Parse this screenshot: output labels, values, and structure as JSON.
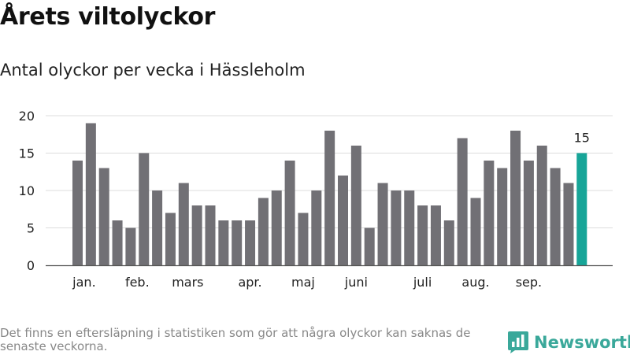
{
  "header": {
    "title": "Årets viltolyckor",
    "subtitle": "Antal olyckor per vecka i Hässleholm"
  },
  "footer": {
    "note": "Det finns en eftersläpning i statistiken som gör att några olyckor kan saknas de senaste veckorna.",
    "brand": "Newsworthy",
    "brand_icon": "bar-chart-speech-bubble-icon"
  },
  "colors": {
    "bar": "#717075",
    "highlight": "#17a598",
    "grid": "#dcdcdc",
    "axis": "#555555",
    "brand": "#3aa89a"
  },
  "chart_data": {
    "type": "bar",
    "title": "Årets viltolyckor",
    "subtitle": "Antal olyckor per vecka i Hässleholm",
    "xlabel": "",
    "ylabel": "",
    "ylim": [
      0,
      20
    ],
    "yticks": [
      0,
      5,
      10,
      15,
      20
    ],
    "grid": true,
    "legend": "none",
    "weeks": [
      1,
      2,
      3,
      4,
      5,
      6,
      7,
      8,
      9,
      10,
      11,
      12,
      13,
      14,
      15,
      16,
      17,
      18,
      19,
      20,
      21,
      22,
      23,
      24,
      25,
      26,
      27,
      28,
      29,
      30,
      31,
      32,
      33,
      34,
      35,
      36,
      37,
      38,
      39
    ],
    "values": [
      14,
      19,
      13,
      6,
      5,
      15,
      10,
      7,
      11,
      8,
      8,
      6,
      6,
      6,
      9,
      10,
      14,
      7,
      10,
      18,
      12,
      16,
      5,
      11,
      10,
      10,
      8,
      8,
      6,
      17,
      9,
      14,
      13,
      18,
      14,
      16,
      13,
      11,
      15
    ],
    "highlight_index": 38,
    "highlight_label": "15",
    "month_labels": [
      {
        "label": "jan.",
        "week": 1.5
      },
      {
        "label": "feb.",
        "week": 5.5
      },
      {
        "label": "mars",
        "week": 9.3
      },
      {
        "label": "apr.",
        "week": 14
      },
      {
        "label": "maj",
        "week": 18
      },
      {
        "label": "juni",
        "week": 22
      },
      {
        "label": "juli",
        "week": 27
      },
      {
        "label": "aug.",
        "week": 31
      },
      {
        "label": "sep.",
        "week": 35
      }
    ]
  }
}
